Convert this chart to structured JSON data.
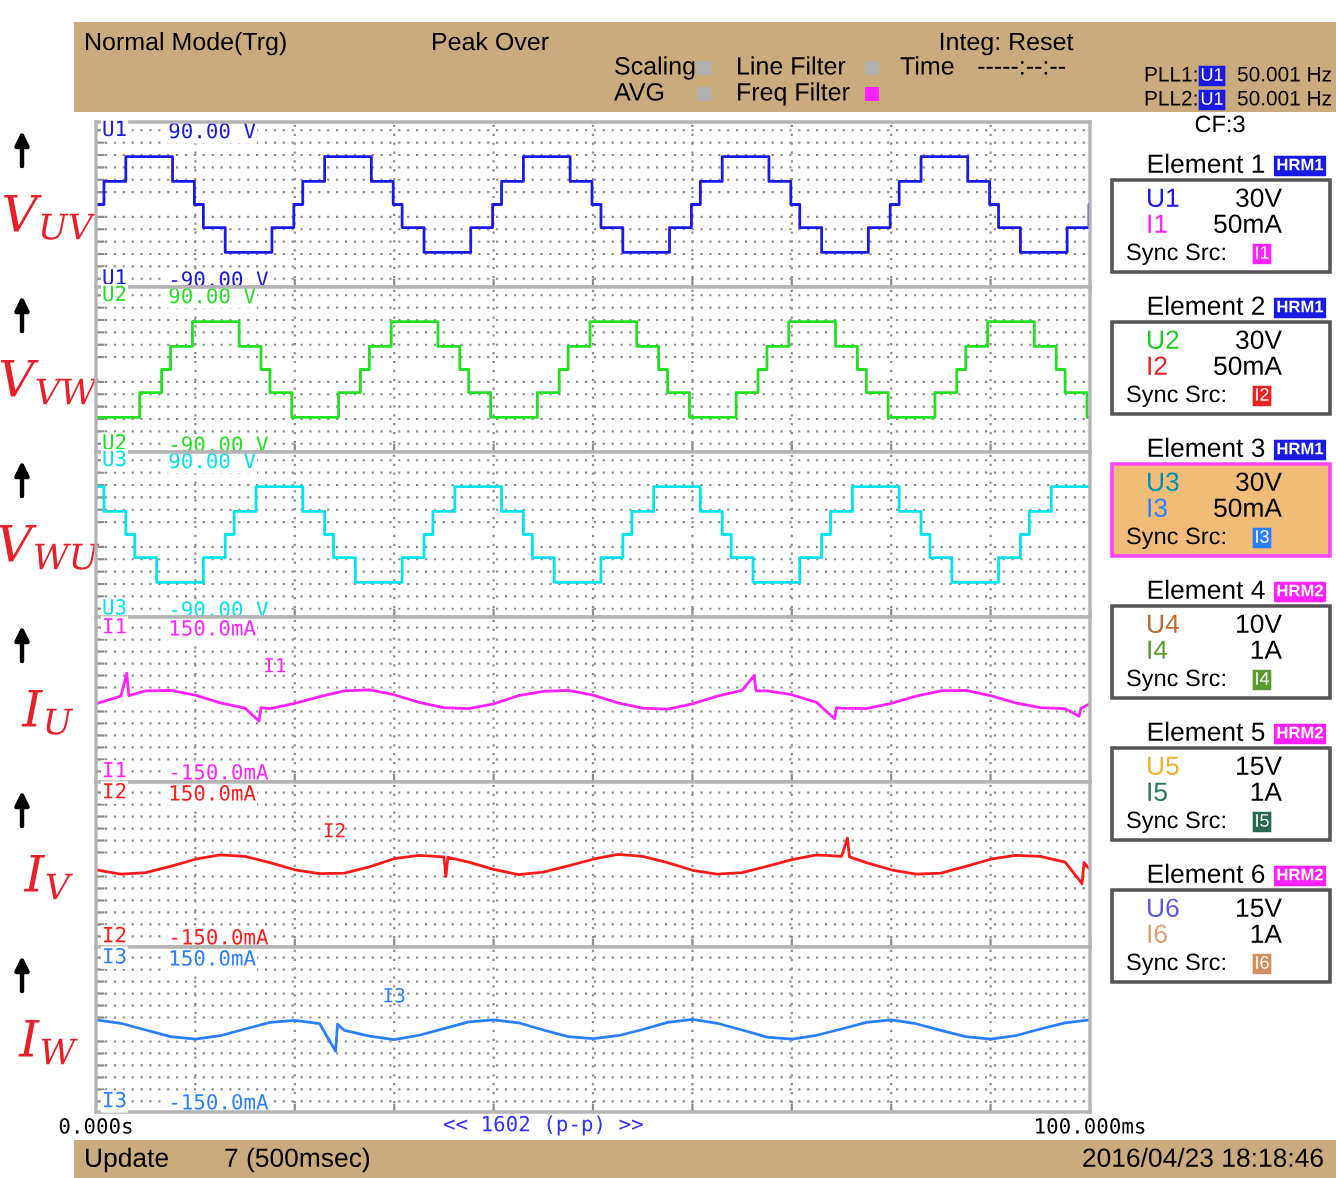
{
  "chart_data": [
    {
      "type": "step",
      "ylabel": "V$_{UV}$",
      "xlim": [
        0,
        100
      ],
      "ylim": [
        -100,
        100
      ],
      "yticks": [
        {
          "value": -90,
          "label": "-90.00 V"
        },
        {
          "value": -75,
          "label": null
        },
        {
          "value": -60,
          "label": null
        },
        {
          "value": -45,
          "label": null
        },
        {
          "value": -30,
          "label": null
        },
        {
          "value": -15,
          "label": null
        },
        {
          "value": 15,
          "label": null
        },
        {
          "value": 30,
          "label": null
        },
        {
          "value": 45,
          "label": null
        },
        {
          "value": 60,
          "label": null
        },
        {
          "value": 75,
          "label": null
        },
        {
          "value": 90,
          "label": "90.00 V"
        }
      ],
      "tick_labels": "y",
      "grid": true,
      "series": [
        {
          "name": "U1",
          "color": "#1a1ae6",
          "x": [
            0,
            0.8,
            3,
            7.7,
            9.9,
            10.8,
            13,
            17.7,
            19.9,
            20.8,
            23,
            27.7,
            29.9,
            30.8,
            33,
            37.7,
            39.9,
            40.8,
            43,
            47.7,
            49.9,
            50.8,
            53,
            57.7,
            59.9,
            60.8,
            63,
            67.7,
            69.9,
            70.8,
            73,
            77.7,
            79.9,
            80.8,
            83,
            87.7,
            89.9,
            90.8,
            93,
            97.7,
            99.9,
            100
          ],
          "values": [
            0,
            28,
            58,
            28,
            0,
            -28,
            -58,
            -28,
            0,
            28,
            58,
            28,
            0,
            -28,
            -58,
            -28,
            0,
            28,
            58,
            28,
            0,
            -28,
            -58,
            -28,
            0,
            28,
            58,
            28,
            0,
            -28,
            -58,
            -28,
            0,
            28,
            58,
            28,
            0,
            -28,
            -58,
            -28,
            0,
            0
          ]
        }
      ]
    },
    {
      "type": "step",
      "ylabel": "V$_{VW}$",
      "xlim": [
        0,
        100
      ],
      "ylim": [
        -100,
        100
      ],
      "yticks": [
        {
          "value": -90,
          "label": "-90.00 V"
        },
        {
          "value": -75,
          "label": null
        },
        {
          "value": -60,
          "label": null
        },
        {
          "value": -45,
          "label": null
        },
        {
          "value": -30,
          "label": null
        },
        {
          "value": -15,
          "label": null
        },
        {
          "value": 15,
          "label": null
        },
        {
          "value": 30,
          "label": null
        },
        {
          "value": 45,
          "label": null
        },
        {
          "value": 60,
          "label": null
        },
        {
          "value": 75,
          "label": null
        },
        {
          "value": 90,
          "label": "90.00 V"
        }
      ],
      "tick_labels": "y",
      "grid": true,
      "series": [
        {
          "name": "U2",
          "color": "#22e022",
          "x": [
            0,
            4.4,
            6.6,
            7.5,
            9.7,
            14.4,
            16.6,
            17.5,
            19.7,
            24.4,
            26.6,
            27.5,
            29.7,
            34.4,
            36.6,
            37.5,
            39.7,
            44.4,
            46.6,
            47.5,
            49.7,
            54.4,
            56.6,
            57.5,
            59.7,
            64.4,
            66.6,
            67.5,
            69.7,
            74.4,
            76.6,
            77.5,
            79.7,
            84.4,
            86.6,
            87.5,
            89.7,
            94.4,
            96.6,
            97.5,
            99.7,
            100
          ],
          "values": [
            -58,
            -28,
            0,
            28,
            58,
            28,
            0,
            -28,
            -58,
            -28,
            0,
            28,
            58,
            28,
            0,
            -28,
            -58,
            -28,
            0,
            28,
            58,
            28,
            0,
            -28,
            -58,
            -28,
            0,
            28,
            58,
            28,
            0,
            -28,
            -58,
            -28,
            0,
            28,
            58,
            28,
            0,
            -28,
            -58,
            -58
          ]
        }
      ]
    },
    {
      "type": "step",
      "ylabel": "V$_{WU}$",
      "xlim": [
        0,
        100
      ],
      "ylim": [
        -100,
        100
      ],
      "yticks": [
        {
          "value": -90,
          "label": "-90.00 V"
        },
        {
          "value": -75,
          "label": null
        },
        {
          "value": -60,
          "label": null
        },
        {
          "value": -45,
          "label": null
        },
        {
          "value": -30,
          "label": null
        },
        {
          "value": -15,
          "label": null
        },
        {
          "value": 15,
          "label": null
        },
        {
          "value": 30,
          "label": null
        },
        {
          "value": 45,
          "label": null
        },
        {
          "value": 60,
          "label": null
        },
        {
          "value": 75,
          "label": null
        },
        {
          "value": 90,
          "label": "90.00 V"
        }
      ],
      "tick_labels": "y",
      "grid": true,
      "series": [
        {
          "name": "U3",
          "color": "#00e5ee",
          "x": [
            0,
            0.8,
            3.0,
            3.9,
            6.1,
            10.8,
            13.0,
            13.9,
            16.1,
            20.8,
            23.0,
            23.9,
            26.1,
            30.8,
            33.0,
            33.9,
            36.1,
            40.8,
            43.0,
            43.9,
            46.1,
            50.8,
            53.0,
            53.9,
            56.1,
            60.8,
            63.0,
            63.9,
            66.1,
            70.8,
            73.0,
            73.9,
            76.1,
            80.8,
            83.0,
            83.9,
            86.1,
            90.8,
            93.0,
            93.9,
            96.1,
            100
          ],
          "values": [
            58,
            28,
            0,
            -28,
            -58,
            -28,
            0,
            28,
            58,
            28,
            0,
            -28,
            -58,
            -28,
            0,
            28,
            58,
            28,
            0,
            -28,
            -58,
            -28,
            0,
            28,
            58,
            28,
            0,
            -28,
            -58,
            -28,
            0,
            28,
            58,
            28,
            0,
            -28,
            -58,
            -28,
            0,
            28,
            58,
            58
          ]
        }
      ]
    },
    {
      "type": "line",
      "ylabel": "I$_{U}$",
      "xlim": [
        0,
        100
      ],
      "ylim": [
        -172,
        172
      ],
      "yticks": [
        {
          "value": -150,
          "label": "-150.0mA"
        },
        {
          "value": -125,
          "label": null
        },
        {
          "value": -100,
          "label": null
        },
        {
          "value": -75,
          "label": null
        },
        {
          "value": -50,
          "label": null
        },
        {
          "value": -25,
          "label": null
        },
        {
          "value": 25,
          "label": null
        },
        {
          "value": 50,
          "label": null
        },
        {
          "value": 75,
          "label": null
        },
        {
          "value": 100,
          "label": null
        },
        {
          "value": 125,
          "label": null
        },
        {
          "value": 150,
          "label": "150.0mA"
        }
      ],
      "tick_labels": "y",
      "grid": true,
      "annotations": [
        "I1"
      ],
      "series": [
        {
          "name": "I1",
          "color": "#ff22ff",
          "x": [
            0,
            2.5,
            3.1,
            3.3,
            5,
            7.5,
            10,
            12.5,
            15,
            16.4,
            16.6,
            17.5,
            20,
            22.5,
            25,
            27.5,
            30,
            32.5,
            35,
            37.5,
            40,
            42.5,
            45,
            47.5,
            50,
            52.5,
            55,
            57.5,
            60,
            62.5,
            65,
            66.2,
            66.4,
            67.5,
            70,
            72.5,
            74.3,
            74.5,
            75,
            77.5,
            80,
            82.5,
            85,
            87.5,
            90,
            92.5,
            95,
            97.5,
            98.9,
            99.1,
            100
          ],
          "values": [
            -9,
            7,
            55,
            8,
            18,
            19,
            9,
            -7,
            -18,
            -45,
            -17,
            -19,
            -8,
            6,
            18,
            20,
            10,
            -6,
            -17,
            -19,
            -9,
            8,
            17,
            19,
            9,
            -7,
            -18,
            -20,
            -9,
            7,
            19,
            50,
            18,
            18,
            10,
            -6,
            -40,
            -17,
            -18,
            -19,
            -8,
            7,
            18,
            19,
            8,
            -7,
            -17,
            -19,
            -35,
            -18,
            -9
          ]
        }
      ]
    },
    {
      "type": "line",
      "ylabel": "I$_{V}$",
      "xlim": [
        0,
        100
      ],
      "ylim": [
        -172,
        172
      ],
      "yticks": [
        {
          "value": -150,
          "label": "-150.0mA"
        },
        {
          "value": -125,
          "label": null
        },
        {
          "value": -100,
          "label": null
        },
        {
          "value": -75,
          "label": null
        },
        {
          "value": -50,
          "label": null
        },
        {
          "value": -25,
          "label": null
        },
        {
          "value": 25,
          "label": null
        },
        {
          "value": 50,
          "label": null
        },
        {
          "value": 75,
          "label": null
        },
        {
          "value": 100,
          "label": null
        },
        {
          "value": 125,
          "label": null
        },
        {
          "value": 150,
          "label": "150.0mA"
        }
      ],
      "tick_labels": "y",
      "grid": true,
      "annotations": [
        "I2"
      ],
      "series": [
        {
          "name": "I2",
          "color": "#ff1a1a",
          "x": [
            0,
            2.5,
            5,
            7.5,
            10,
            12.5,
            15,
            17.5,
            20,
            22.5,
            25,
            27.5,
            30,
            32.5,
            35,
            35.2,
            35.4,
            37.5,
            40,
            42.5,
            45,
            47.5,
            50,
            52.5,
            55,
            57.5,
            60,
            62.5,
            65,
            67.5,
            70,
            72.5,
            75,
            75.6,
            75.8,
            77.5,
            80,
            82.5,
            85,
            87.5,
            90,
            92.5,
            95,
            97.5,
            99.2,
            99.4,
            100
          ],
          "values": [
            -11,
            -20,
            -17,
            -4,
            11,
            20,
            17,
            4,
            -11,
            -19,
            -18,
            -5,
            12,
            19,
            16,
            -25,
            15,
            5,
            -10,
            -21,
            -16,
            -3,
            11,
            21,
            17,
            4,
            -12,
            -20,
            -17,
            -4,
            10,
            20,
            17,
            55,
            16,
            4,
            -11,
            -20,
            -18,
            -4,
            11,
            19,
            17,
            5,
            -40,
            4,
            -11
          ]
        }
      ]
    },
    {
      "type": "line",
      "ylabel": "I$_{W}$",
      "xlim": [
        0,
        100
      ],
      "ylim": [
        -172,
        172
      ],
      "xticks": [
        {
          "value": 0,
          "label": "0.000s"
        },
        {
          "value": 10,
          "label": null
        },
        {
          "value": 20,
          "label": null
        },
        {
          "value": 30,
          "label": null
        },
        {
          "value": 40,
          "label": null
        },
        {
          "value": 50,
          "label": null
        },
        {
          "value": 60,
          "label": null
        },
        {
          "value": 70,
          "label": null
        },
        {
          "value": 80,
          "label": null
        },
        {
          "value": 90,
          "label": null
        },
        {
          "value": 100,
          "label": "100.000ms"
        }
      ],
      "yticks": [
        {
          "value": -150,
          "label": "-150.0mA"
        },
        {
          "value": -125,
          "label": null
        },
        {
          "value": -100,
          "label": null
        },
        {
          "value": -75,
          "label": null
        },
        {
          "value": -50,
          "label": null
        },
        {
          "value": -25,
          "label": null
        },
        {
          "value": 25,
          "label": null
        },
        {
          "value": 50,
          "label": null
        },
        {
          "value": 75,
          "label": null
        },
        {
          "value": 100,
          "label": null
        },
        {
          "value": 125,
          "label": null
        },
        {
          "value": 150,
          "label": "150.0mA"
        }
      ],
      "grid": true,
      "annotations": [
        "I3",
        "<< 1602 (p-p) >>"
      ],
      "series": [
        {
          "name": "I3",
          "color": "#2a7fff",
          "x": [
            0,
            2.5,
            5,
            7.5,
            10,
            12.5,
            15,
            17.5,
            20,
            22.5,
            24.1,
            24.3,
            25,
            27.5,
            30,
            32.5,
            35,
            37.5,
            40,
            42.5,
            45,
            47.5,
            50,
            52.5,
            55,
            57.5,
            60,
            62.5,
            65,
            67.5,
            70,
            72.5,
            75,
            77.5,
            80,
            82.5,
            85,
            87.5,
            90,
            92.5,
            95,
            97.5,
            100
          ],
          "values": [
            20,
            13,
            -1,
            -15,
            -20,
            -13,
            1,
            15,
            19,
            12,
            -45,
            11,
            -2,
            -14,
            -21,
            -12,
            2,
            16,
            20,
            14,
            -1,
            -15,
            -19,
            -13,
            0,
            15,
            21,
            13,
            -1,
            -16,
            -20,
            -12,
            1,
            15,
            20,
            12,
            -2,
            -15,
            -20,
            -13,
            1,
            14,
            20
          ]
        }
      ]
    },
    {
      "type": "other",
      "annotations": [
        "Normal Mode(Trg)",
        "Peak Over",
        "Scaling",
        "AVG",
        "Line Filter",
        "Freq Filter",
        "Integ: Reset",
        "Time",
        "-----:--:--",
        "PLL1:",
        "U1",
        "50.001 Hz",
        "PLL2:",
        "U1",
        "50.001 Hz",
        "CF:3"
      ],
      "colors": [
        "#b0b0b0",
        "#b0b0b0",
        "#b0b0b0",
        "#ff22ff",
        "#1a1ae6"
      ]
    },
    {
      "type": "other",
      "title": "Element 1",
      "annotations": [
        "HRM1",
        "U1",
        "30V",
        "I1",
        "50mA",
        "Sync Src:",
        "I1"
      ],
      "colors": [
        "#1a1ae6",
        "#1a1ae6",
        "#ff22ff",
        "#ff22ff",
        "#ffffff",
        "#555555"
      ]
    },
    {
      "type": "other",
      "title": "Element 2",
      "annotations": [
        "HRM1",
        "U2",
        "30V",
        "I2",
        "50mA",
        "Sync Src:",
        "I2"
      ],
      "colors": [
        "#1a1ae6",
        "#22cc22",
        "#ee2222",
        "#ee2222",
        "#ffffff",
        "#555555"
      ]
    },
    {
      "type": "other",
      "title": "Element 3",
      "annotations": [
        "HRM1",
        "U3",
        "30V",
        "I3",
        "50mA",
        "Sync Src:",
        "I3"
      ],
      "colors": [
        "#1a1ae6",
        "#0090b0",
        "#2a7fff",
        "#2a7fff",
        "#f0bc78",
        "#ff44ff"
      ]
    },
    {
      "type": "other",
      "title": "Element 4",
      "annotations": [
        "HRM2",
        "U4",
        "10V",
        "I4",
        "1A",
        "Sync Src:",
        "I4"
      ],
      "colors": [
        "#ff22ff",
        "#c06a30",
        "#5a9a30",
        "#5a9a30",
        "#ffffff",
        "#555555"
      ]
    },
    {
      "type": "other",
      "title": "Element 5",
      "annotations": [
        "HRM2",
        "U5",
        "15V",
        "I5",
        "1A",
        "Sync Src:",
        "I5"
      ],
      "colors": [
        "#ff22ff",
        "#f0b030",
        "#2a7a5a",
        "#2a6a50",
        "#ffffff",
        "#555555"
      ]
    },
    {
      "type": "other",
      "title": "Element 6",
      "annotations": [
        "HRM2",
        "U6",
        "15V",
        "I6",
        "1A",
        "Sync Src:",
        "I6"
      ],
      "colors": [
        "#ff22ff",
        "#5a5ae0",
        "#e0a070",
        "#d09060",
        "#ffffff",
        "#555555"
      ]
    },
    {
      "type": "other",
      "annotations": [
        "Update",
        "7 (500msec)",
        "2016/04/23 18:18:46"
      ]
    }
  ]
}
